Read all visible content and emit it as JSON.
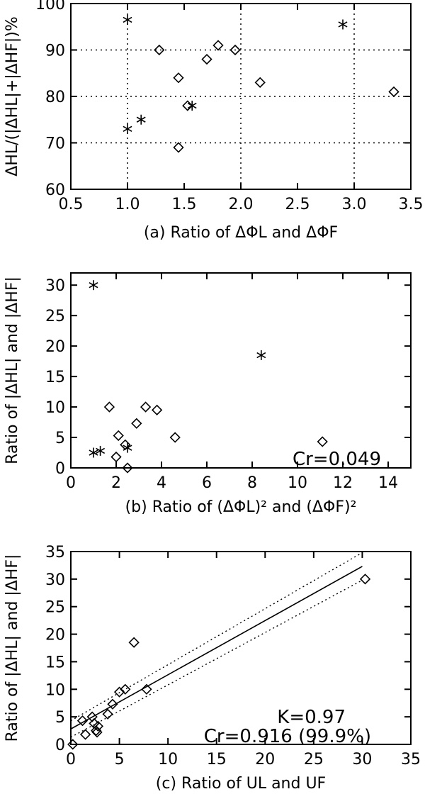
{
  "chart_data": [
    {
      "id": "a",
      "type": "scatter",
      "xlabel": "(a) Ratio of  ΔΦL and  ΔΦF",
      "ylabel": "ΔHL/(|ΔHL|+|ΔHF|)%",
      "xlim": [
        0.5,
        3.5
      ],
      "ylim": [
        60,
        100
      ],
      "xticks": [
        0.5,
        1.0,
        1.5,
        2.0,
        2.5,
        3.0,
        3.5
      ],
      "xtick_labels": [
        "0.5",
        "1.0",
        "1.5",
        "2.0",
        "2.5",
        "3.0",
        "3.5"
      ],
      "yticks": [
        60,
        70,
        80,
        90,
        100
      ],
      "ytick_labels": [
        "60",
        "70",
        "80",
        "90",
        "100"
      ],
      "grid_x": [
        1.0,
        2.0,
        3.0
      ],
      "grid_y": [
        70,
        80,
        90
      ],
      "series": [
        {
          "marker": "star",
          "points": [
            [
              1.0,
              96.5
            ],
            [
              1.0,
              73
            ],
            [
              1.12,
              75
            ],
            [
              1.57,
              78
            ],
            [
              2.9,
              95.5
            ]
          ]
        },
        {
          "marker": "diamond",
          "points": [
            [
              1.28,
              90
            ],
            [
              1.45,
              84
            ],
            [
              1.45,
              69
            ],
            [
              1.53,
              78
            ],
            [
              1.7,
              88
            ],
            [
              1.8,
              91
            ],
            [
              1.95,
              90
            ],
            [
              2.17,
              83
            ],
            [
              3.35,
              81
            ]
          ]
        }
      ],
      "annotations": []
    },
    {
      "id": "b",
      "type": "scatter",
      "xlabel": "(b) Ratio of  (ΔΦL)² and  (ΔΦF)²",
      "ylabel": "Ratio of |ΔHL| and |ΔHF|",
      "xlim": [
        0,
        15
      ],
      "ylim": [
        0,
        32
      ],
      "xticks": [
        0,
        2,
        4,
        6,
        8,
        10,
        12,
        14
      ],
      "xtick_labels": [
        "0",
        "2",
        "4",
        "6",
        "8",
        "10",
        "12",
        "14"
      ],
      "yticks": [
        0,
        5,
        10,
        15,
        20,
        25,
        30
      ],
      "ytick_labels": [
        "0",
        "5",
        "10",
        "15",
        "20",
        "25",
        "30"
      ],
      "series": [
        {
          "marker": "star",
          "points": [
            [
              1.0,
              30
            ],
            [
              1.0,
              2.5
            ],
            [
              1.3,
              2.8
            ],
            [
              2.5,
              3.3
            ],
            [
              8.4,
              18.5
            ]
          ]
        },
        {
          "marker": "diamond",
          "points": [
            [
              1.7,
              10
            ],
            [
              2.0,
              1.8
            ],
            [
              2.1,
              5.3
            ],
            [
              2.4,
              3.8
            ],
            [
              2.5,
              0
            ],
            [
              2.9,
              7.3
            ],
            [
              3.3,
              10
            ],
            [
              3.8,
              9.5
            ],
            [
              4.6,
              5
            ],
            [
              11.1,
              4.3
            ]
          ]
        }
      ],
      "annotations": [
        "Cr=0.049"
      ]
    },
    {
      "id": "c",
      "type": "scatter",
      "xlabel": "(c) Ratio of UL and UF",
      "ylabel": "Ratio of |ΔHL| and |ΔHF|",
      "xlim": [
        0,
        35
      ],
      "ylim": [
        0,
        35
      ],
      "xticks": [
        0,
        5,
        10,
        15,
        20,
        25,
        30,
        35
      ],
      "xtick_labels": [
        "0",
        "5",
        "10",
        "15",
        "20",
        "25",
        "30",
        "35"
      ],
      "yticks": [
        0,
        5,
        10,
        15,
        20,
        25,
        30,
        35
      ],
      "ytick_labels": [
        "0",
        "5",
        "10",
        "15",
        "20",
        "25",
        "30",
        "35"
      ],
      "series": [
        {
          "marker": "diamond",
          "points": [
            [
              0.2,
              0
            ],
            [
              1.2,
              4.3
            ],
            [
              1.5,
              1.8
            ],
            [
              2.2,
              5
            ],
            [
              2.4,
              3.8
            ],
            [
              2.6,
              2.5
            ],
            [
              2.8,
              3.3
            ],
            [
              2.7,
              2.2
            ],
            [
              3.8,
              5.5
            ],
            [
              4.3,
              7.3
            ],
            [
              5.0,
              9.5
            ],
            [
              5.6,
              10
            ],
            [
              6.5,
              18.5
            ],
            [
              7.8,
              10
            ],
            [
              30.3,
              30
            ]
          ]
        }
      ],
      "fit": {
        "x": [
          0,
          30
        ],
        "y": [
          2.8,
          32.3
        ]
      },
      "confidence_upper": {
        "x": [
          0,
          30
        ],
        "y": [
          4.3,
          34.8
        ]
      },
      "confidence_lower": {
        "x": [
          0,
          30
        ],
        "y": [
          1.3,
          29.8
        ]
      },
      "annotations": [
        "K=0.97",
        "Cr=0.916 (99.9%)"
      ]
    }
  ]
}
